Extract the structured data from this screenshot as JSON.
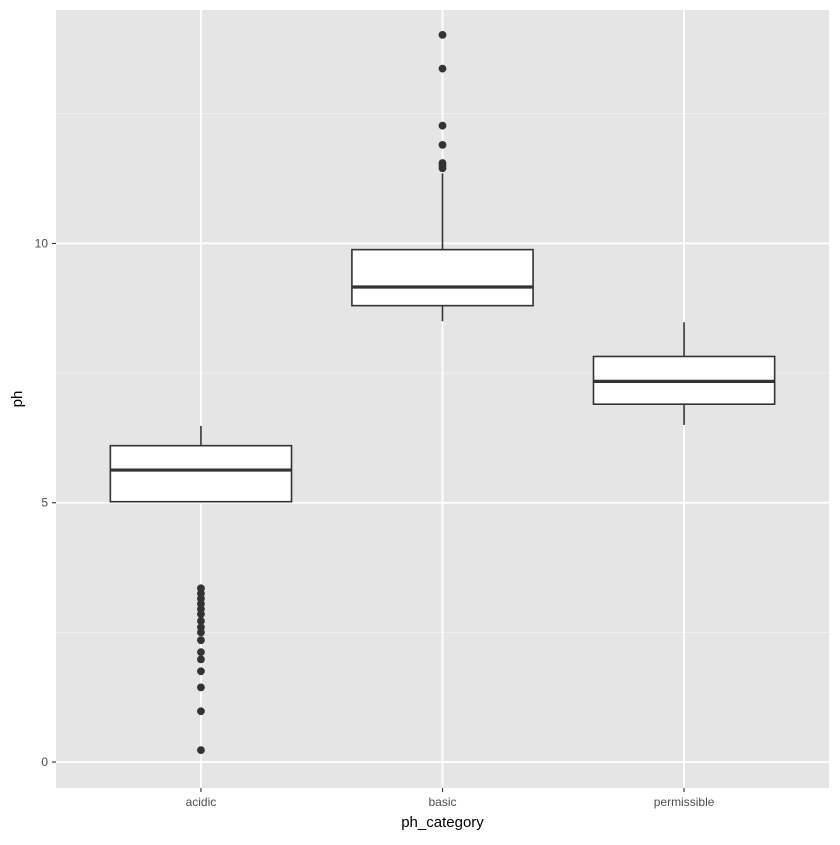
{
  "chart_data": {
    "type": "boxplot",
    "title": "",
    "xlabel": "ph_category",
    "ylabel": "ph",
    "categories": [
      "acidic",
      "basic",
      "permissible"
    ],
    "ylim": [
      -0.5,
      14.5
    ],
    "y_ticks": [
      0,
      5,
      10
    ],
    "y_tick_labels": [
      "0",
      "5",
      "10"
    ],
    "grid": true,
    "boxes": [
      {
        "category": "acidic",
        "whisker_low": 5.02,
        "q1": 5.02,
        "median": 5.63,
        "q3": 6.1,
        "whisker_high": 6.48,
        "outliers": [
          3.35,
          3.25,
          3.15,
          3.05,
          2.95,
          2.85,
          2.72,
          2.6,
          2.5,
          2.35,
          2.12,
          1.98,
          1.75,
          1.44,
          0.98,
          0.23
        ]
      },
      {
        "category": "basic",
        "whisker_low": 8.5,
        "q1": 8.8,
        "median": 9.16,
        "q3": 9.88,
        "whisker_high": 11.35,
        "outliers": [
          11.45,
          11.5,
          11.55,
          11.9,
          12.27,
          13.37,
          14.02
        ]
      },
      {
        "category": "permissible",
        "whisker_low": 6.5,
        "q1": 6.9,
        "median": 7.34,
        "q3": 7.82,
        "whisker_high": 8.48,
        "outliers": []
      }
    ]
  },
  "colors": {
    "panel_background": "#e5e5e5",
    "grid_major": "#ffffff",
    "grid_minor": "#f2f2f2",
    "box_fill": "#ffffff",
    "box_stroke": "#333333",
    "outlier": "#333333",
    "tick_text": "#4d4d4d",
    "axis_title": "#000000"
  }
}
